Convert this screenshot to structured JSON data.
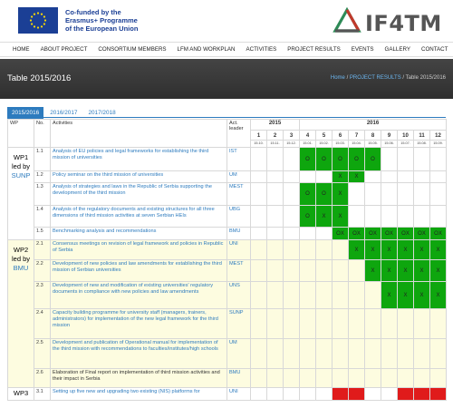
{
  "eu": {
    "line1": "Co-funded by the",
    "line2": "Erasmus+ Programme",
    "line3": "of the European Union"
  },
  "logo": {
    "text": "IF4TM"
  },
  "nav": [
    "HOME",
    "ABOUT PROJECT",
    "CONSORTIUM MEMBERS",
    "LFM AND WORKPLAN",
    "ACTIVITIES",
    "PROJECT RESULTS",
    "EVENTS",
    "GALLERY",
    "CONTACT"
  ],
  "banner": {
    "title": "Table 2015/2016",
    "crumb_home": "Home",
    "crumb_sep1": " / ",
    "crumb_results": "PROJECT RESULTS",
    "crumb_sep2": " / ",
    "crumb_current": "Table 2015/2016"
  },
  "tabs": [
    "2015/2016",
    "2016/2017",
    "2017/2018"
  ],
  "table": {
    "headers": {
      "wp": "WP",
      "no": "No.",
      "activities": "Activities",
      "leader": "Act. leader"
    },
    "years": {
      "y2015": "2015",
      "y2016": "2016"
    },
    "months": [
      "1",
      "2",
      "3",
      "4",
      "5",
      "6",
      "7",
      "8",
      "9",
      "10",
      "11",
      "12"
    ],
    "dates": [
      "15.10.",
      "15.11.",
      "15.12.",
      "15.01.",
      "15.02.",
      "15.03.",
      "15.04.",
      "15.05.",
      "15.06.",
      "15.07.",
      "15.08.",
      "15.09."
    ],
    "wp1": {
      "name": "WP1",
      "led": "led by",
      "lead": "SUNP"
    },
    "wp2": {
      "name": "WP2",
      "led": "led by",
      "lead": "BMU"
    },
    "wp3": {
      "name": "WP3"
    },
    "rows": [
      {
        "no": "1.1",
        "activity": "Analysis of EU policies and legal frameworks for establishing the third mission of universities",
        "leader": "IST"
      },
      {
        "no": "1.2",
        "activity": "Policy seminar on the third mission of universities",
        "leader": "UM"
      },
      {
        "no": "1.3",
        "activity": "Analysis of strategies and laws in the Republic of Serbia supporting the development of the third mission",
        "leader": "MEST"
      },
      {
        "no": "1.4",
        "activity": "Analysis of the regulatory documents and existing structures for all three dimensions of third mission activities at seven Serbian HEIs",
        "leader": "UBG"
      },
      {
        "no": "1.5",
        "activity": "Benchmarking analysis and recommendations",
        "leader": "BMU"
      },
      {
        "no": "2.1",
        "activity": "Consensus meetings on revision of legal framework and policies in Republic of Serbia",
        "leader": "UNI"
      },
      {
        "no": "2.2",
        "activity": "Development of new policies and law amendments for establishing the third mission of Serbian universities",
        "leader": "MEST"
      },
      {
        "no": "2.3",
        "activity": "Development of new and modification of existing universities' regulatory documents in compliance with new policies and law amendments",
        "leader": "UNS"
      },
      {
        "no": "2.4",
        "activity": "Capacity building programme for university staff (managers, trainers, administrators) for implementation of the new legal framework for the third mission",
        "leader": "SUNP"
      },
      {
        "no": "2.5",
        "activity": "Development and publication of Operational manual for implementation of the third mission with recommendations to faculties/institutes/high schools",
        "leader": "UM"
      },
      {
        "no": "2.6",
        "activity": "Elaboration of Final report on implementation of third mission activities and their impact in Serbia",
        "leader": "BMU"
      },
      {
        "no": "3.1",
        "activity": "Setting up five new and upgrading two existing (NIS) platforms for",
        "leader": "UNI"
      }
    ],
    "marks": {
      "o": "O",
      "x": "X",
      "ox": "OX"
    }
  }
}
